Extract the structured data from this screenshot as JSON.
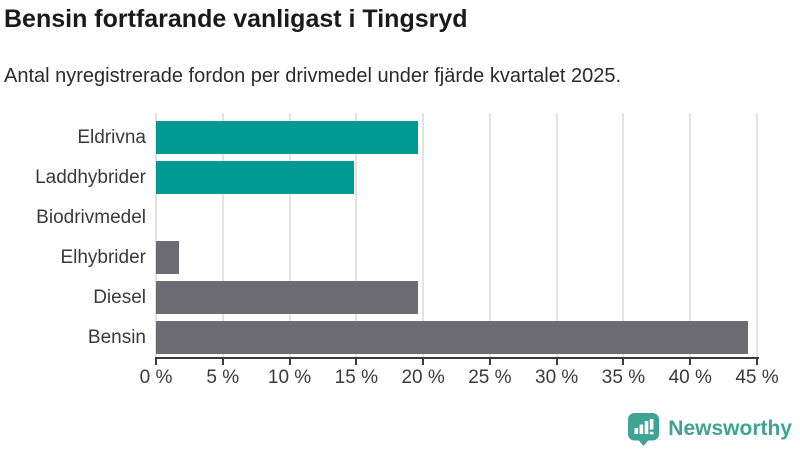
{
  "title": "Bensin fortfarande vanligast i Tingsryd",
  "subtitle": "Antal nyregistrerade fordon per drivmedel under fjärde kvartalet 2025.",
  "chart_data": {
    "type": "bar",
    "orientation": "horizontal",
    "title": "Bensin fortfarande vanligast i Tingsryd",
    "subtitle": "Antal nyregistrerade fordon per drivmedel under fjärde kvartalet 2025.",
    "categories": [
      "Eldrivna",
      "Laddhybrider",
      "Biodrivmedel",
      "Elhybrider",
      "Diesel",
      "Bensin"
    ],
    "values": [
      19.6,
      14.8,
      0,
      1.7,
      19.6,
      44.3
    ],
    "unit": "%",
    "xlim": [
      0,
      45
    ],
    "x_tick_values": [
      0,
      5,
      10,
      15,
      20,
      25,
      30,
      35,
      40,
      45
    ],
    "x_tick_labels": [
      "0 %",
      "5 %",
      "10 %",
      "15 %",
      "20 %",
      "25 %",
      "30 %",
      "35 %",
      "40 %",
      "45 %"
    ],
    "bar_colors": [
      "#009a93",
      "#009a93",
      "#6d6c72",
      "#6d6c72",
      "#6d6c72",
      "#6d6c72"
    ],
    "grid": "vertical-gridlines",
    "legend": "none"
  },
  "branding": {
    "logo_text": "Newsworthy",
    "logo_icon": "bar-chart-speech-bubble-icon",
    "logo_color": "#3ea294"
  },
  "colors": {
    "teal": "#009a93",
    "gray": "#6d6c72",
    "axis": "#3a3a3a",
    "gridline": "#e2e2e2",
    "title_text": "#1a1a1a",
    "body_text": "#3a3a3a"
  }
}
